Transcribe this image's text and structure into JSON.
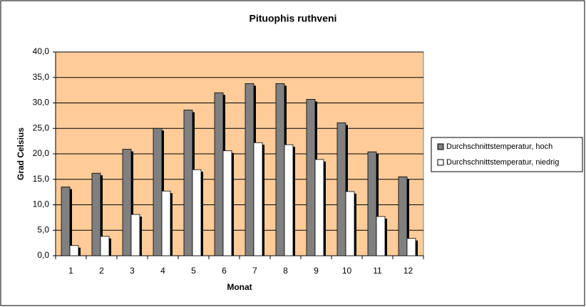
{
  "chart_data": {
    "type": "bar",
    "title": "Pituophis ruthveni",
    "x_label": "Monat",
    "y_label": "Grad Celsius",
    "categories": [
      "1",
      "2",
      "3",
      "4",
      "5",
      "6",
      "7",
      "8",
      "9",
      "10",
      "11",
      "12"
    ],
    "series": [
      {
        "name": "Durchschnittstemperatur, hoch",
        "color": "#808080",
        "values": [
          13.5,
          16.2,
          20.9,
          25.0,
          28.6,
          32.0,
          33.8,
          33.8,
          30.7,
          26.1,
          20.4,
          15.5
        ]
      },
      {
        "name": "Durchschnittstemperatur, niedrig",
        "color": "#ffffff",
        "values": [
          2.0,
          3.8,
          8.1,
          12.7,
          16.9,
          20.6,
          22.2,
          21.8,
          18.9,
          12.6,
          7.7,
          3.4
        ]
      }
    ],
    "ylim": [
      0,
      40
    ],
    "yticks": [
      {
        "value": 0,
        "label": "0,0"
      },
      {
        "value": 5,
        "label": "5,0"
      },
      {
        "value": 10,
        "label": "10,0"
      },
      {
        "value": 15,
        "label": "15,0"
      },
      {
        "value": 20,
        "label": "20,0"
      },
      {
        "value": 25,
        "label": "25,0"
      },
      {
        "value": 30,
        "label": "30,0"
      },
      {
        "value": 35,
        "label": "35,0"
      },
      {
        "value": 40,
        "label": "40,0"
      }
    ],
    "grid": true,
    "plot_background": "#ffcc99",
    "legend_position": "right"
  }
}
